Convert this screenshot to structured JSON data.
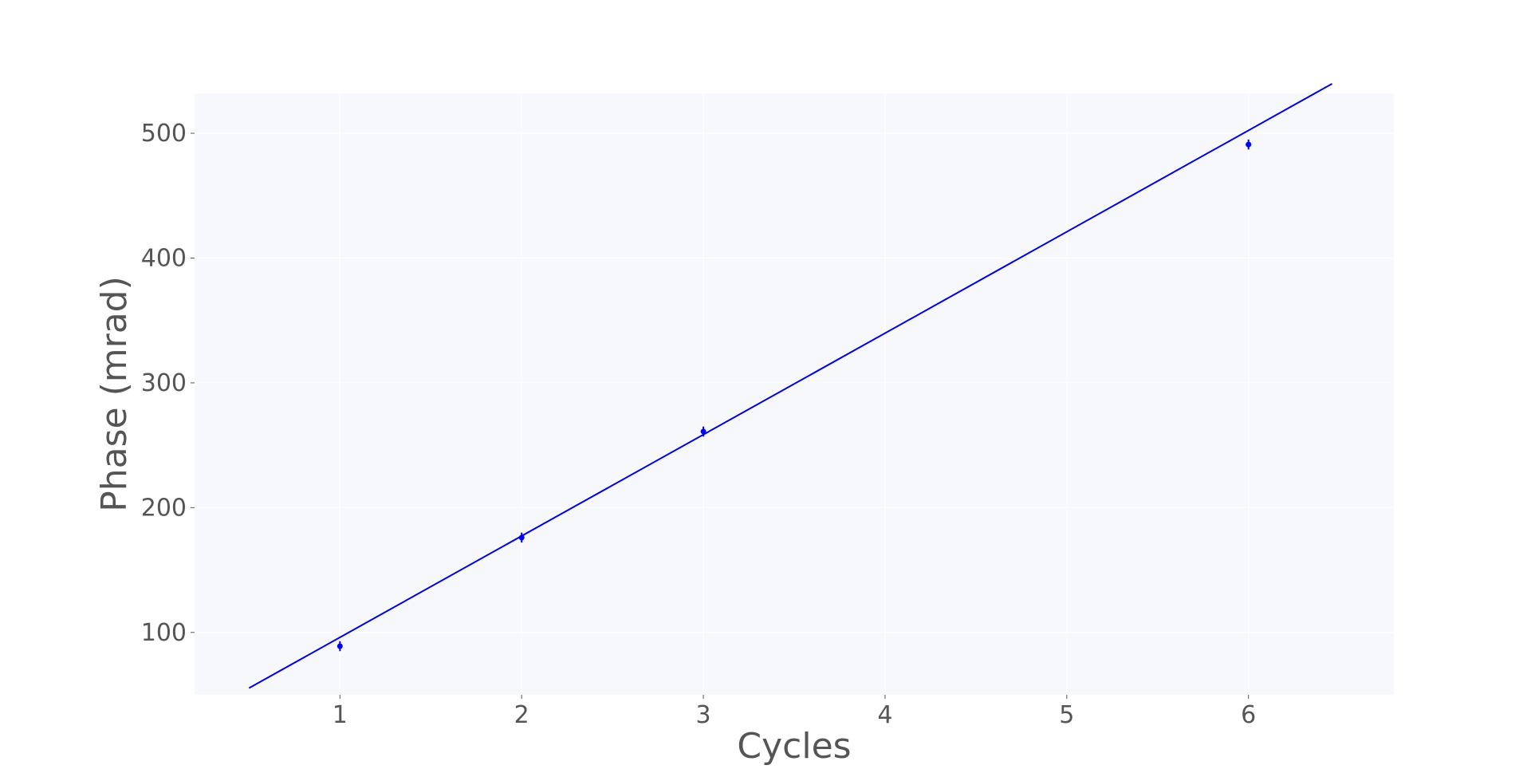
{
  "chart_data": {
    "type": "scatter",
    "title": "",
    "xlabel": "Cycles",
    "ylabel": "Phase (mrad)",
    "xlim": [
      0.2,
      6.8
    ],
    "ylim": [
      50,
      532
    ],
    "x_ticks": [
      1,
      2,
      3,
      4,
      5,
      6
    ],
    "y_ticks": [
      100,
      200,
      300,
      400,
      500
    ],
    "x_tick_labels": [
      "1",
      "2",
      "3",
      "4",
      "5",
      "6"
    ],
    "y_tick_labels": [
      "100",
      "200",
      "300",
      "400",
      "500"
    ],
    "grid": true,
    "series": [
      {
        "kind": "errorbar",
        "x": [
          1,
          2,
          3,
          6
        ],
        "y": [
          89,
          176,
          261,
          491
        ],
        "yerr": [
          4,
          4,
          4,
          4
        ]
      },
      {
        "kind": "fit-line",
        "slope": 81.25,
        "intercept": 14.8,
        "x_range": [
          0.5,
          6.46
        ]
      }
    ],
    "colors": {
      "data": "#0000ff",
      "fit": "#0000dd",
      "plot_background": "#f7f8fb",
      "grid": "#ffffff",
      "text": "#555555"
    }
  }
}
